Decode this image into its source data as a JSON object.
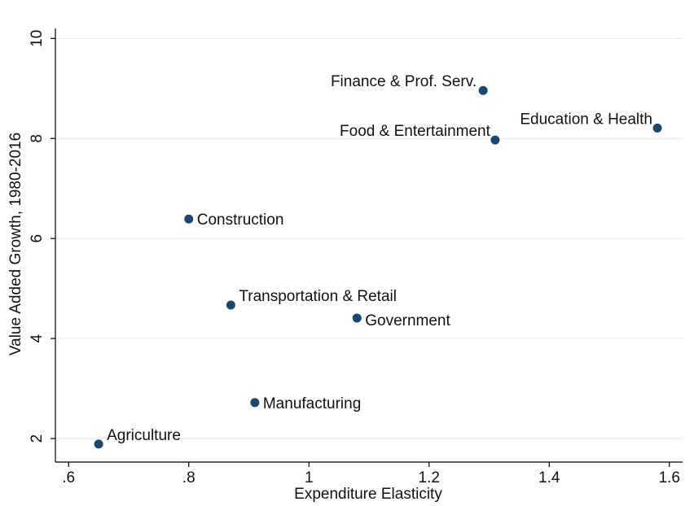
{
  "chart_data": {
    "type": "scatter",
    "x_label": "Expenditure Elasticity",
    "y_label": "Value Added Growth, 1980-2016",
    "x": [
      0.65,
      0.91,
      0.87,
      1.08,
      0.8,
      1.29,
      1.31,
      1.58
    ],
    "values": [
      1.89,
      2.72,
      4.67,
      4.41,
      6.39,
      8.96,
      7.97,
      8.21
    ],
    "point_labels": [
      "Agriculture",
      "Manufacturing",
      "Transportation & Retail",
      "Government",
      "Construction",
      "Finance & Prof. Serv.",
      "Food & Entertainment",
      "Education & Health"
    ],
    "color": "#1a476f",
    "xlim": [
      0.578,
      1.622
    ],
    "ylim": [
      1.53,
      10.2
    ],
    "xticks": [
      {
        "value": 0.6,
        "label": ".6"
      },
      {
        "value": 0.8,
        "label": ".8"
      },
      1,
      1.2,
      1.4,
      1.6
    ],
    "yticks": [
      2,
      4,
      6,
      8,
      10
    ],
    "grid": true
  }
}
